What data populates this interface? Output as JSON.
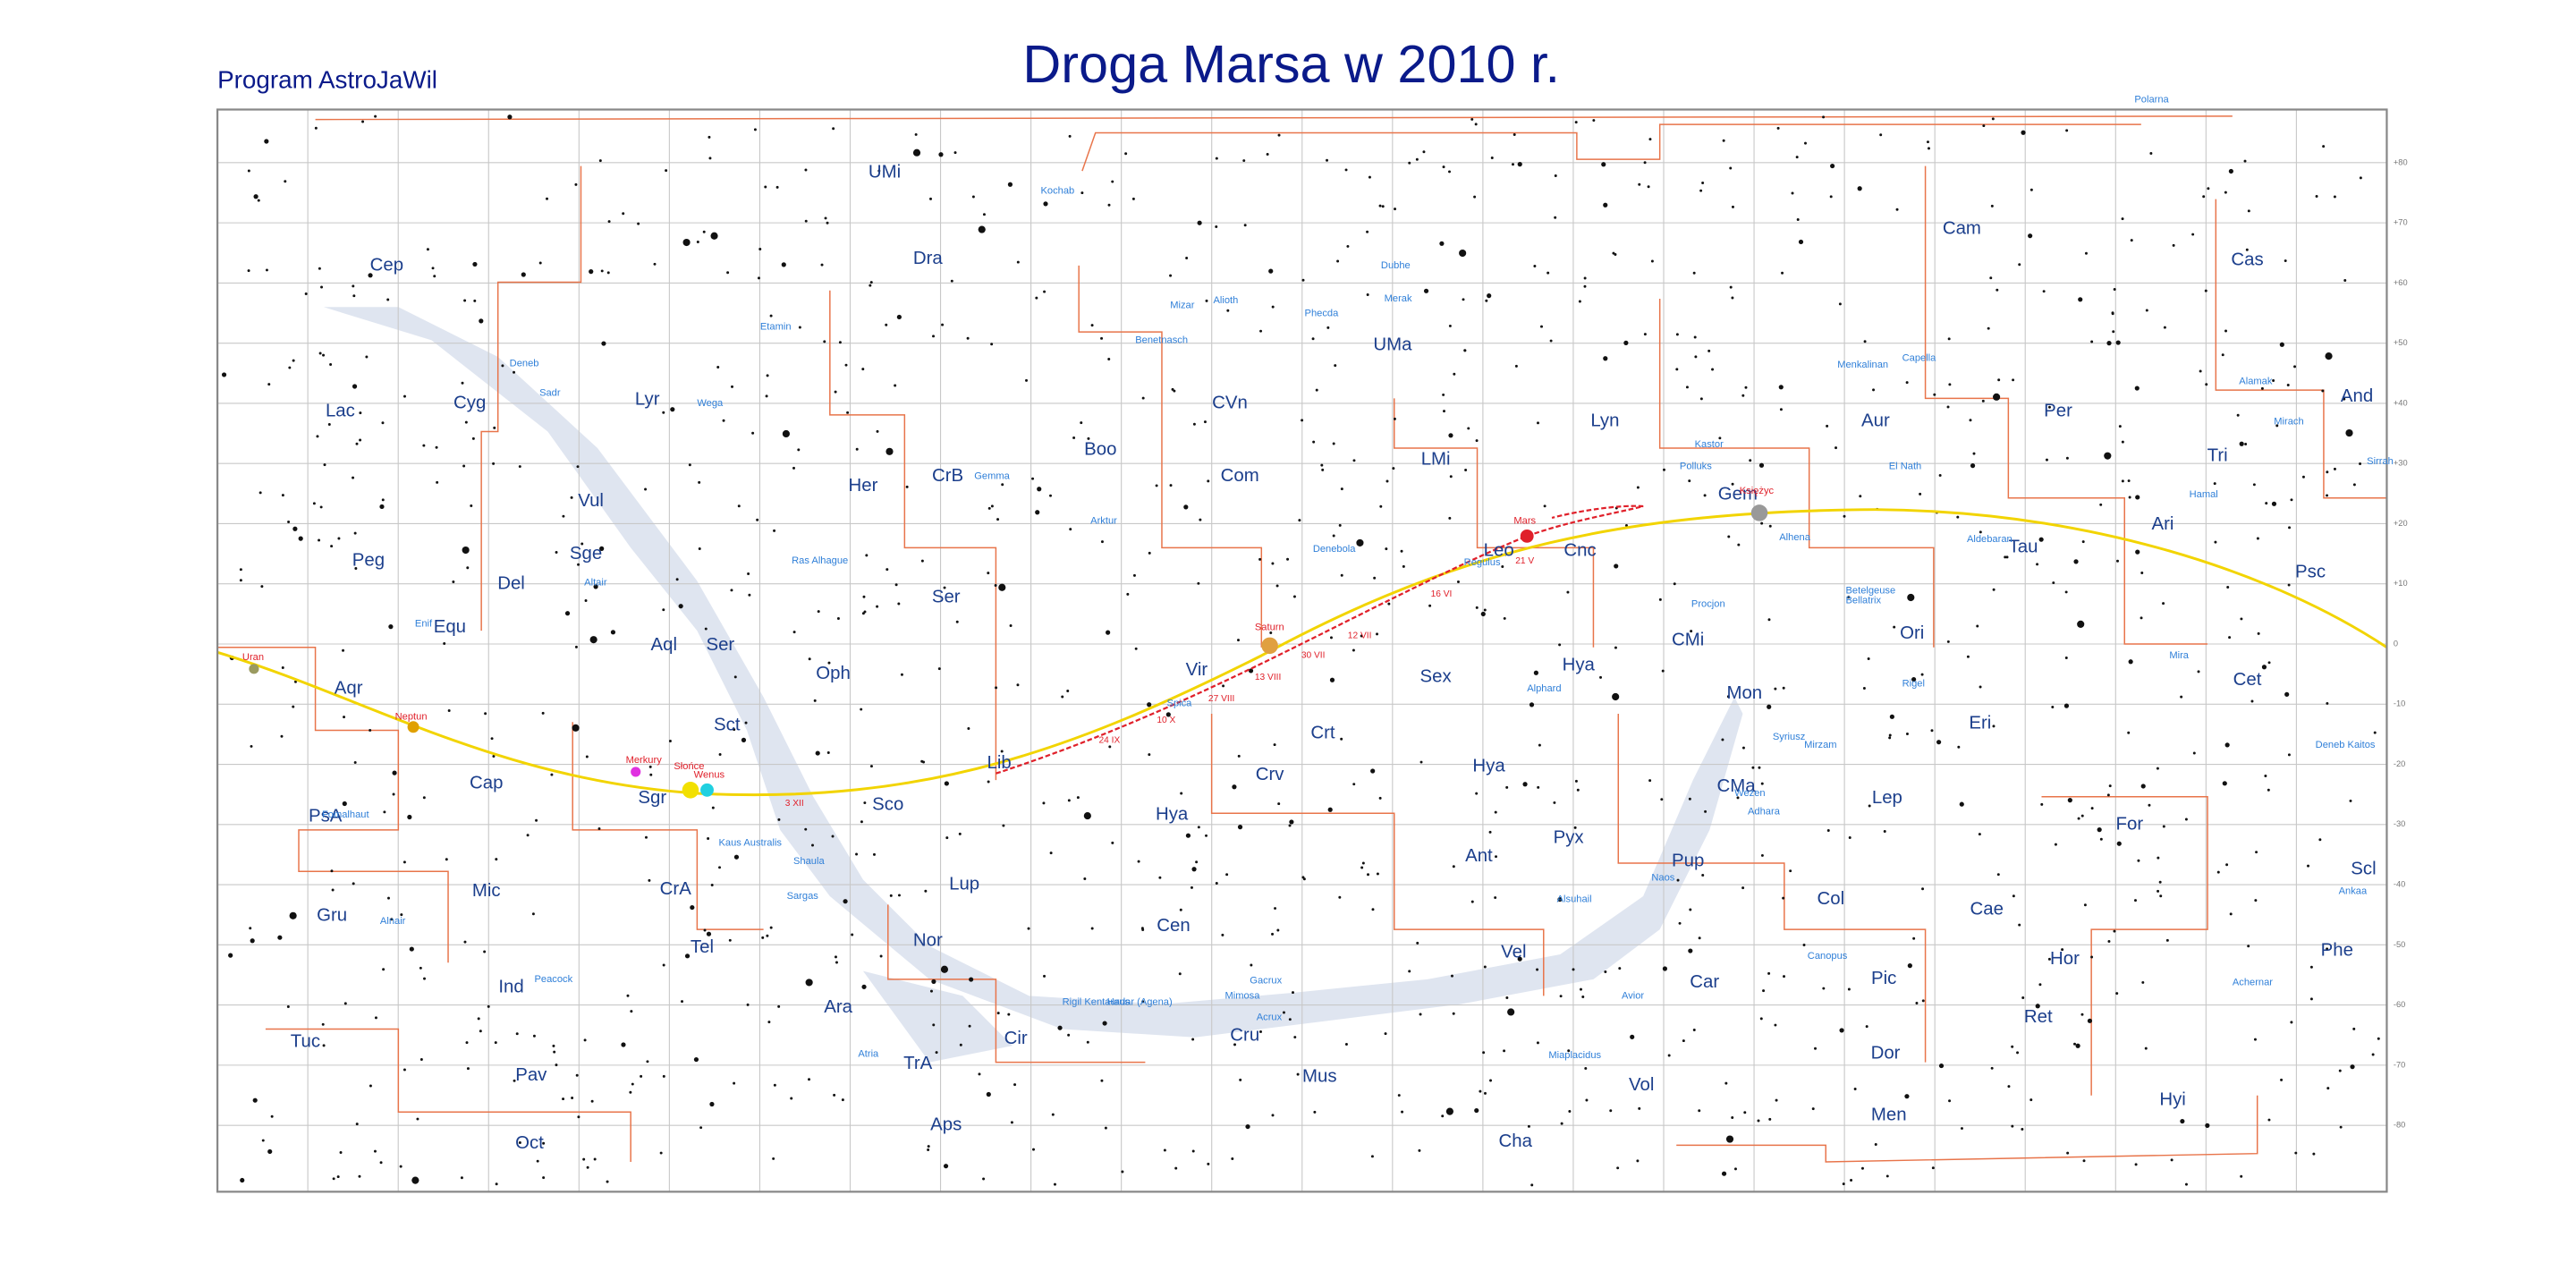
{
  "header": {
    "program": "Program AstroJaWil",
    "title": "Droga Marsa w 2010 r."
  },
  "map": {
    "dec_labels": [
      "+80",
      "+70",
      "+60",
      "+50",
      "+40",
      "+30",
      "+20",
      "+10",
      "0",
      "-10",
      "-20",
      "-30",
      "-40",
      "-50",
      "-60",
      "-70",
      "-80"
    ],
    "constellations": [
      "UMi",
      "Cep",
      "Dra",
      "Cam",
      "Cas",
      "UMa",
      "Lac",
      "Cyg",
      "Lyr",
      "CVn",
      "Lyn",
      "Aur",
      "Per",
      "And",
      "Boo",
      "CrB",
      "Her",
      "Com",
      "LMi",
      "Tri",
      "Vul",
      "Gem",
      "Peg",
      "Sge",
      "Del",
      "Ser",
      "Leo",
      "Cnc",
      "Ari",
      "Psc",
      "Equ",
      "Aql",
      "Ser",
      "CMi",
      "Ori",
      "Tau",
      "Oph",
      "Vir",
      "Sex",
      "Hya",
      "Mon",
      "Cet",
      "Aqr",
      "Sct",
      "Crt",
      "Eri",
      "Lib",
      "Crv",
      "Hya",
      "CMa",
      "Lep",
      "Cap",
      "Sgr",
      "Sco",
      "Hya",
      "PsA",
      "Pyx",
      "For",
      "Ant",
      "Pup",
      "Scl",
      "Mic",
      "CrA",
      "Lup",
      "Col",
      "Cae",
      "Gru",
      "Cen",
      "Nor",
      "Tel",
      "Vel",
      "Hor",
      "Phe",
      "Ind",
      "Car",
      "Pic",
      "Ara",
      "Cir",
      "Ret",
      "Tuc",
      "TrA",
      "Cru",
      "Dor",
      "Pav",
      "Mus",
      "Vol",
      "Hyi",
      "Men",
      "Aps",
      "Oct",
      "Cha"
    ],
    "stars": [
      "Polarna",
      "Kochab",
      "Dubhe",
      "Merak",
      "Alioth",
      "Mizar",
      "Phecda",
      "Deneb",
      "Sadr",
      "Wega",
      "Etamin",
      "Benetnasch",
      "Capella",
      "Menkalinan",
      "Alamak",
      "Mirach",
      "Kastor",
      "Polluks",
      "El Nath",
      "Hamal",
      "Sirrah",
      "Gemma",
      "Arktur",
      "Denebola",
      "Regulus",
      "Ras Alhague",
      "Altair",
      "Enif",
      "Procjon",
      "Alhena",
      "Aldebaran",
      "Betelgeuse",
      "Bellatrix",
      "Rigel",
      "Mira",
      "Alphard",
      "Spica",
      "Syriusz",
      "Mirzam",
      "Wezen",
      "Adhara",
      "Fomalhaut",
      "Deneb Kaitos",
      "Kaus Australis",
      "Shaula",
      "Sargas",
      "Alnair",
      "Achernar",
      "Ankaa",
      "Canopus",
      "Peacock",
      "Rigil Kentaurus",
      "Hadar (Agena)",
      "Acrux",
      "Mimosa",
      "Gacrux",
      "Atria",
      "Alsuhail",
      "Avior",
      "Miaplacidus",
      "Naos"
    ],
    "planets": [
      "Uran",
      "Neptun",
      "Merkury",
      "Słońce",
      "Wenus",
      "Saturn",
      "Mars",
      "Księżyc"
    ],
    "dates": [
      "3 XII",
      "24 IX",
      "10 X",
      "27 VIII",
      "13 VIII",
      "30 VII",
      "12 VII",
      "16 VI",
      "21 V"
    ]
  }
}
